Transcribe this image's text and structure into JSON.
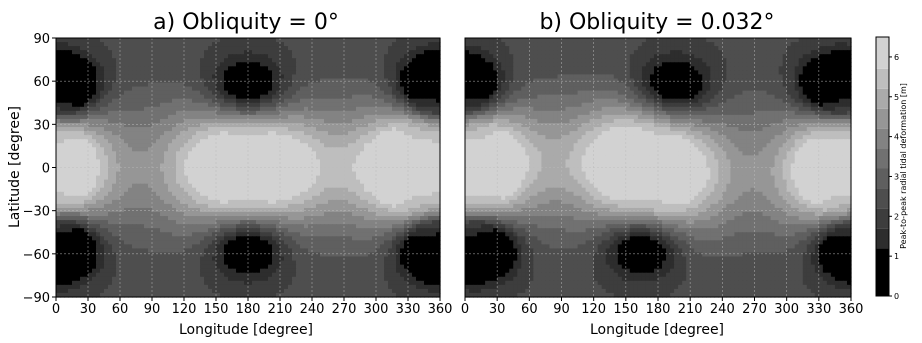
{
  "chart_data": [
    {
      "type": "heatmap",
      "title": "a) Obliquity = 0°",
      "xlabel": "Longitude [degree]",
      "ylabel": "Latitude [degree]",
      "xlim": [
        0,
        360
      ],
      "ylim": [
        -90,
        90
      ],
      "xticks": [
        "0",
        "30",
        "60",
        "90",
        "120",
        "150",
        "180",
        "210",
        "240",
        "270",
        "300",
        "330",
        "360"
      ],
      "yticks": [
        "90",
        "60",
        "30",
        "0",
        "−30",
        "−60",
        "−90"
      ],
      "grid": true,
      "field_features": [
        {
          "kind": "maximum",
          "lon": 0,
          "lat": 0,
          "value": 5.8
        },
        {
          "kind": "maximum",
          "lon": 150,
          "lat": 0,
          "value": 5.8
        },
        {
          "kind": "maximum",
          "lon": 210,
          "lat": 0,
          "value": 5.8
        },
        {
          "kind": "maximum",
          "lon": 330,
          "lat": 0,
          "value": 5.8
        },
        {
          "kind": "minimum",
          "lon": 0,
          "lat": 55,
          "value": 0.2
        },
        {
          "kind": "minimum",
          "lon": 180,
          "lat": 55,
          "value": 0.2
        },
        {
          "kind": "minimum",
          "lon": 360,
          "lat": 55,
          "value": 0.2
        },
        {
          "kind": "minimum",
          "lon": 0,
          "lat": -55,
          "value": 0.2
        },
        {
          "kind": "minimum",
          "lon": 180,
          "lat": -55,
          "value": 0.2
        },
        {
          "kind": "minimum",
          "lon": 360,
          "lat": -55,
          "value": 0.2
        }
      ]
    },
    {
      "type": "heatmap",
      "title": "b) Obliquity = 0.032°",
      "xlabel": "Longitude [degree]",
      "ylabel": "",
      "xlim": [
        0,
        360
      ],
      "ylim": [
        -90,
        90
      ],
      "xticks": [
        "0",
        "30",
        "60",
        "90",
        "120",
        "150",
        "180",
        "210",
        "240",
        "270",
        "300",
        "330",
        "360"
      ],
      "grid": true,
      "field_features": [
        {
          "kind": "maximum",
          "lon": 15,
          "lat": 5,
          "value": 5.8
        },
        {
          "kind": "maximum",
          "lon": 145,
          "lat": 5,
          "value": 5.8
        },
        {
          "kind": "maximum",
          "lon": 195,
          "lat": -5,
          "value": 5.8
        },
        {
          "kind": "maximum",
          "lon": 345,
          "lat": -5,
          "value": 5.8
        },
        {
          "kind": "minimum",
          "lon": 0,
          "lat": 55,
          "value": 0.2
        },
        {
          "kind": "minimum",
          "lon": 195,
          "lat": 55,
          "value": 0.2
        },
        {
          "kind": "minimum",
          "lon": 345,
          "lat": 55,
          "value": 0.2
        },
        {
          "kind": "minimum",
          "lon": 15,
          "lat": -55,
          "value": 0.2
        },
        {
          "kind": "minimum",
          "lon": 165,
          "lat": -55,
          "value": 0.2
        },
        {
          "kind": "minimum",
          "lon": 360,
          "lat": -55,
          "value": 0.2
        }
      ]
    }
  ],
  "colorbar": {
    "label": "Peak-to-peak radial tidal deformation [m]",
    "ticks": [
      "0",
      "1",
      "2",
      "3",
      "4",
      "5",
      "6"
    ],
    "range": [
      0,
      6.5
    ],
    "levels": [
      0,
      1.2,
      1.7,
      2.2,
      2.7,
      3.2,
      3.7,
      4.2,
      4.7,
      5.2,
      5.7,
      6.5
    ],
    "colors": [
      "#000000",
      "#2d2d2d",
      "#3d3d3d",
      "#4e4e4e",
      "#5f5f5f",
      "#717171",
      "#838383",
      "#969696",
      "#aaaaaa",
      "#bebebe",
      "#d2d2d2",
      "#e6e6e6"
    ]
  }
}
